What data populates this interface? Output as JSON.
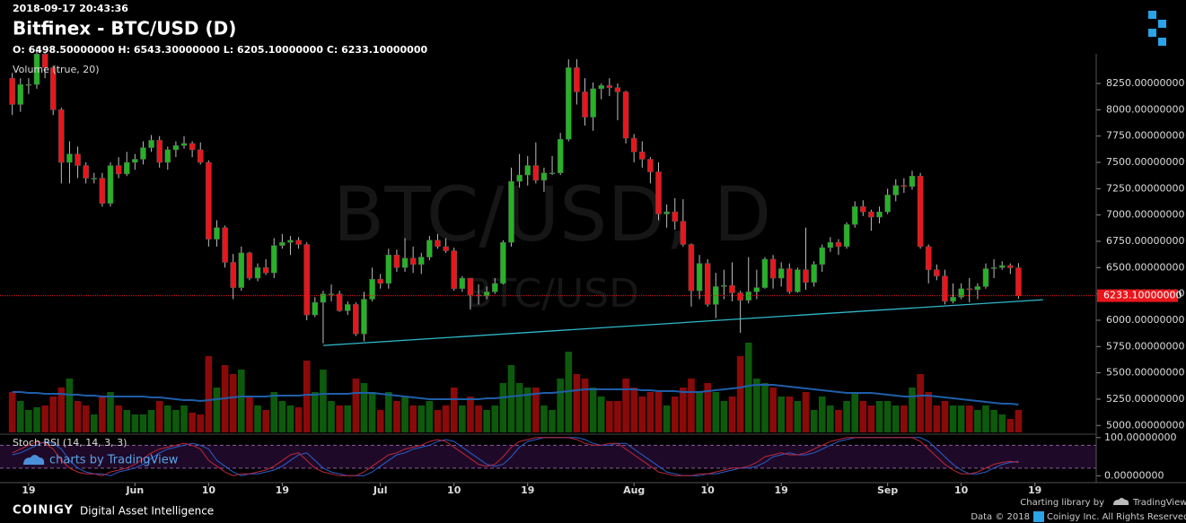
{
  "header": {
    "timestamp": "2018-09-17 20:43:36",
    "title": "Bitfinex - BTC/USD (D)",
    "ohlc": "O: 6498.50000000 H: 6543.30000000 L: 6205.10000000 C: 6233.10000000",
    "watermark": "BTC/USD, D",
    "watermark_sub": "BTC/USD"
  },
  "chart_data": {
    "type": "candlestick",
    "candles": [
      [
        8300,
        8350,
        7950,
        8050
      ],
      [
        8050,
        8300,
        7980,
        8240
      ],
      [
        8240,
        8300,
        8150,
        8240
      ],
      [
        8240,
        8600,
        8200,
        8530
      ],
      [
        8530,
        8550,
        8300,
        8400
      ],
      [
        8400,
        8420,
        7950,
        8000
      ],
      [
        8000,
        8020,
        7300,
        7500
      ],
      [
        7500,
        7700,
        7300,
        7580
      ],
      [
        7580,
        7650,
        7350,
        7470
      ],
      [
        7470,
        7500,
        7300,
        7350
      ],
      [
        7350,
        7400,
        7300,
        7350
      ],
      [
        7350,
        7400,
        7080,
        7110
      ],
      [
        7110,
        7500,
        7080,
        7470
      ],
      [
        7470,
        7550,
        7350,
        7390
      ],
      [
        7390,
        7600,
        7370,
        7500
      ],
      [
        7500,
        7580,
        7430,
        7530
      ],
      [
        7530,
        7700,
        7480,
        7640
      ],
      [
        7640,
        7760,
        7600,
        7710
      ],
      [
        7710,
        7750,
        7450,
        7500
      ],
      [
        7500,
        7650,
        7430,
        7620
      ],
      [
        7620,
        7700,
        7550,
        7660
      ],
      [
        7660,
        7750,
        7630,
        7680
      ],
      [
        7680,
        7700,
        7550,
        7620
      ],
      [
        7620,
        7690,
        7480,
        7500
      ],
      [
        7500,
        7520,
        6700,
        6770
      ],
      [
        6770,
        6950,
        6700,
        6880
      ],
      [
        6880,
        6900,
        6500,
        6550
      ],
      [
        6550,
        6630,
        6200,
        6310
      ],
      [
        6310,
        6700,
        6280,
        6640
      ],
      [
        6640,
        6650,
        6380,
        6400
      ],
      [
        6400,
        6540,
        6370,
        6500
      ],
      [
        6500,
        6580,
        6430,
        6450
      ],
      [
        6450,
        6780,
        6400,
        6710
      ],
      [
        6710,
        6820,
        6680,
        6740
      ],
      [
        6740,
        6800,
        6620,
        6760
      ],
      [
        6760,
        6790,
        6680,
        6720
      ],
      [
        6720,
        6740,
        6000,
        6050
      ],
      [
        6050,
        6220,
        6030,
        6170
      ],
      [
        6170,
        6280,
        5780,
        6250
      ],
      [
        6250,
        6340,
        6180,
        6250
      ],
      [
        6250,
        6280,
        6080,
        6090
      ],
      [
        6090,
        6180,
        6050,
        6150
      ],
      [
        6150,
        6170,
        5850,
        5870
      ],
      [
        5870,
        6270,
        5800,
        6200
      ],
      [
        6200,
        6500,
        6180,
        6390
      ],
      [
        6390,
        6440,
        6300,
        6350
      ],
      [
        6350,
        6680,
        6300,
        6620
      ],
      [
        6620,
        6670,
        6460,
        6500
      ],
      [
        6500,
        6780,
        6460,
        6590
      ],
      [
        6590,
        6700,
        6450,
        6530
      ],
      [
        6530,
        6640,
        6440,
        6600
      ],
      [
        6600,
        6800,
        6570,
        6760
      ],
      [
        6760,
        6820,
        6680,
        6700
      ],
      [
        6700,
        6780,
        6640,
        6660
      ],
      [
        6660,
        6690,
        6280,
        6300
      ],
      [
        6300,
        6420,
        6270,
        6400
      ],
      [
        6400,
        6400,
        6100,
        6240
      ],
      [
        6240,
        6340,
        6150,
        6230
      ],
      [
        6230,
        6320,
        6200,
        6270
      ],
      [
        6270,
        6400,
        6250,
        6350
      ],
      [
        6350,
        6760,
        6340,
        6740
      ],
      [
        6740,
        7450,
        6700,
        7320
      ],
      [
        7320,
        7580,
        7260,
        7380
      ],
      [
        7380,
        7560,
        7280,
        7470
      ],
      [
        7470,
        7690,
        7300,
        7330
      ],
      [
        7330,
        7450,
        7220,
        7400
      ],
      [
        7400,
        7560,
        7380,
        7400
      ],
      [
        7400,
        7780,
        7380,
        7720
      ],
      [
        7720,
        8480,
        7700,
        8400
      ],
      [
        8400,
        8480,
        8050,
        8170
      ],
      [
        8170,
        8300,
        7850,
        7930
      ],
      [
        7930,
        8260,
        7800,
        8200
      ],
      [
        8200,
        8250,
        8100,
        8230
      ],
      [
        8230,
        8300,
        8130,
        8210
      ],
      [
        8210,
        8250,
        7900,
        8170
      ],
      [
        8170,
        8180,
        7680,
        7730
      ],
      [
        7730,
        7770,
        7500,
        7600
      ],
      [
        7600,
        7700,
        7450,
        7530
      ],
      [
        7530,
        7550,
        7300,
        7410
      ],
      [
        7410,
        7500,
        6950,
        7010
      ],
      [
        7010,
        7100,
        6880,
        7030
      ],
      [
        7030,
        7160,
        6860,
        6940
      ],
      [
        6940,
        7150,
        6700,
        6720
      ],
      [
        6720,
        6730,
        6130,
        6280
      ],
      [
        6280,
        6620,
        6200,
        6540
      ],
      [
        6540,
        6580,
        6130,
        6150
      ],
      [
        6150,
        6450,
        6020,
        6320
      ],
      [
        6320,
        6480,
        6200,
        6330
      ],
      [
        6330,
        6550,
        6180,
        6260
      ],
      [
        6260,
        6280,
        5880,
        6190
      ],
      [
        6190,
        6600,
        6160,
        6270
      ],
      [
        6270,
        6480,
        6200,
        6310
      ],
      [
        6310,
        6600,
        6300,
        6580
      ],
      [
        6580,
        6620,
        6300,
        6400
      ],
      [
        6400,
        6550,
        6320,
        6490
      ],
      [
        6490,
        6540,
        6250,
        6270
      ],
      [
        6270,
        6500,
        6260,
        6480
      ],
      [
        6480,
        6880,
        6290,
        6360
      ],
      [
        6360,
        6560,
        6320,
        6530
      ],
      [
        6530,
        6720,
        6460,
        6690
      ],
      [
        6690,
        6790,
        6650,
        6740
      ],
      [
        6740,
        6770,
        6620,
        6700
      ],
      [
        6700,
        6930,
        6680,
        6910
      ],
      [
        6910,
        7130,
        6880,
        7080
      ],
      [
        7080,
        7140,
        6990,
        7030
      ],
      [
        7030,
        7050,
        6850,
        6980
      ],
      [
        6980,
        7080,
        6920,
        7030
      ],
      [
        7030,
        7250,
        7010,
        7190
      ],
      [
        7190,
        7340,
        7130,
        7280
      ],
      [
        7280,
        7350,
        7210,
        7270
      ],
      [
        7270,
        7420,
        7240,
        7370
      ],
      [
        7370,
        7400,
        6680,
        6700
      ],
      [
        6700,
        6720,
        6350,
        6480
      ],
      [
        6480,
        6530,
        6380,
        6420
      ],
      [
        6420,
        6480,
        6150,
        6180
      ],
      [
        6180,
        6350,
        6160,
        6220
      ],
      [
        6220,
        6350,
        6200,
        6300
      ],
      [
        6300,
        6400,
        6170,
        6290
      ],
      [
        6290,
        6350,
        6200,
        6320
      ],
      [
        6320,
        6540,
        6300,
        6490
      ],
      [
        6490,
        6580,
        6400,
        6500
      ],
      [
        6500,
        6560,
        6480,
        6520
      ],
      [
        6520,
        6540,
        6440,
        6498.5
      ],
      [
        6498.5,
        6543.3,
        6205.1,
        6233.1
      ]
    ],
    "colors": {
      "up": "#26b226",
      "down": "#e8161b",
      "vol_up": "#0d5a0d",
      "vol_down": "#8a0a0a"
    },
    "xlim": [
      -1.5,
      132.5
    ],
    "xticks": [
      {
        "value": 2,
        "label": "19"
      },
      {
        "value": 15,
        "label": "Jun"
      },
      {
        "value": 24,
        "label": "10"
      },
      {
        "value": 33,
        "label": "19"
      },
      {
        "value": 45,
        "label": "Jul"
      },
      {
        "value": 54,
        "label": "10"
      },
      {
        "value": 63,
        "label": "19"
      },
      {
        "value": 76,
        "label": "Aug"
      },
      {
        "value": 85,
        "label": "10"
      },
      {
        "value": 94,
        "label": "19"
      },
      {
        "value": 107,
        "label": "Sep"
      },
      {
        "value": 116,
        "label": "10"
      },
      {
        "value": 125,
        "label": "19"
      }
    ],
    "ylim": [
      4917,
      8489
    ],
    "yticks": [
      {
        "value": 5000,
        "label": "5000.00000000"
      },
      {
        "value": 5250,
        "label": "5250.00000000"
      },
      {
        "value": 5500,
        "label": "5500.00000000"
      },
      {
        "value": 5750,
        "label": "5750.00000000"
      },
      {
        "value": 6000,
        "label": "6000.00000000"
      },
      {
        "value": 6250,
        "label": "6250.00000000"
      },
      {
        "value": 6500,
        "label": "6500.00000000"
      },
      {
        "value": 6750,
        "label": "6750.00000000"
      },
      {
        "value": 7000,
        "label": "7000.00000000"
      },
      {
        "value": 7250,
        "label": "7250.00000000"
      },
      {
        "value": 7500,
        "label": "7500.00000000"
      },
      {
        "value": 7750,
        "label": "7750.00000000"
      },
      {
        "value": 8000,
        "label": "8000.00000000"
      },
      {
        "value": 8250,
        "label": "8250.00000000"
      }
    ],
    "close_label": "6233.10000000",
    "trendline": {
      "x": [
        38,
        126
      ],
      "y": [
        5760,
        6195
      ],
      "color": "#2fb8c8"
    },
    "volume": {
      "label": "Volume (true, 20)",
      "vlim": [
        0,
        110
      ],
      "ma_color": "#1f5ea8",
      "values": [
        45,
        35,
        25,
        28,
        30,
        40,
        50,
        60,
        35,
        30,
        20,
        40,
        45,
        30,
        25,
        20,
        20,
        25,
        35,
        30,
        25,
        30,
        22,
        20,
        85,
        50,
        75,
        65,
        70,
        40,
        30,
        25,
        45,
        35,
        30,
        28,
        80,
        45,
        70,
        35,
        30,
        30,
        60,
        55,
        45,
        25,
        45,
        35,
        40,
        30,
        30,
        35,
        25,
        30,
        50,
        30,
        40,
        30,
        25,
        30,
        55,
        75,
        55,
        50,
        50,
        30,
        25,
        60,
        90,
        65,
        60,
        50,
        40,
        35,
        35,
        60,
        50,
        40,
        45,
        45,
        30,
        40,
        50,
        60,
        45,
        55,
        45,
        35,
        40,
        85,
        100,
        60,
        55,
        50,
        40,
        40,
        35,
        45,
        25,
        40,
        30,
        25,
        35,
        45,
        35,
        30,
        35,
        35,
        30,
        30,
        50,
        65,
        45,
        30,
        35,
        30,
        30,
        30,
        25,
        30,
        25,
        20,
        15,
        25
      ],
      "ma": [
        45,
        45,
        44,
        44,
        43,
        43,
        43,
        42,
        42,
        41,
        41,
        40,
        40,
        40,
        40,
        40,
        40,
        39,
        39,
        38,
        37,
        36,
        36,
        35,
        36,
        37,
        38,
        39,
        40,
        40,
        40,
        40,
        41,
        41,
        41,
        41,
        42,
        42,
        43,
        43,
        43,
        43,
        44,
        44,
        44,
        43,
        42,
        41,
        40,
        39,
        38,
        37,
        37,
        37,
        37,
        37,
        37,
        37,
        38,
        38,
        39,
        40,
        41,
        42,
        43,
        44,
        44,
        45,
        46,
        47,
        48,
        48,
        48,
        48,
        48,
        48,
        48,
        47,
        47,
        46,
        46,
        46,
        45,
        45,
        45,
        46,
        47,
        48,
        49,
        50,
        52,
        53,
        53,
        53,
        52,
        51,
        50,
        49,
        48,
        47,
        46,
        45,
        44,
        44,
        44,
        44,
        43,
        42,
        41,
        40,
        40,
        41,
        41,
        40,
        39,
        38,
        37,
        36,
        35,
        34,
        33,
        32,
        32,
        31
      ]
    },
    "stoch": {
      "label": "Stoch RSI (14, 14, 3, 3)",
      "ylim": [
        -18,
        109
      ],
      "band": [
        20,
        80
      ],
      "k_color": "#c0263c",
      "d_color": "#2a5fcf",
      "yticks": [
        {
          "value": 100,
          "label": "100.00000000"
        },
        {
          "value": 0,
          "label": "0.00000000"
        }
      ],
      "k": [
        60,
        70,
        80,
        90,
        85,
        70,
        40,
        20,
        10,
        5,
        5,
        0,
        10,
        15,
        20,
        30,
        45,
        60,
        70,
        75,
        80,
        85,
        80,
        70,
        40,
        25,
        10,
        0,
        5,
        5,
        10,
        15,
        25,
        40,
        55,
        60,
        40,
        20,
        10,
        5,
        0,
        0,
        0,
        10,
        25,
        40,
        55,
        60,
        70,
        75,
        80,
        90,
        95,
        90,
        75,
        60,
        45,
        30,
        25,
        30,
        50,
        75,
        90,
        95,
        100,
        100,
        100,
        100,
        100,
        95,
        85,
        80,
        80,
        85,
        85,
        70,
        55,
        40,
        25,
        10,
        5,
        0,
        0,
        0,
        5,
        5,
        10,
        15,
        20,
        20,
        25,
        35,
        50,
        55,
        60,
        55,
        55,
        60,
        70,
        80,
        90,
        95,
        100,
        100,
        100,
        100,
        100,
        100,
        100,
        100,
        100,
        90,
        70,
        50,
        30,
        15,
        5,
        5,
        10,
        20,
        30,
        35,
        38,
        35
      ],
      "d": [
        55,
        60,
        70,
        80,
        90,
        85,
        70,
        40,
        20,
        10,
        5,
        5,
        0,
        10,
        15,
        20,
        30,
        45,
        60,
        70,
        75,
        80,
        85,
        80,
        70,
        40,
        25,
        10,
        0,
        5,
        5,
        10,
        15,
        25,
        40,
        55,
        60,
        40,
        20,
        10,
        5,
        0,
        0,
        0,
        10,
        25,
        40,
        55,
        60,
        70,
        75,
        80,
        90,
        95,
        90,
        75,
        60,
        45,
        30,
        25,
        30,
        50,
        75,
        90,
        95,
        100,
        100,
        100,
        100,
        100,
        95,
        85,
        80,
        80,
        85,
        85,
        70,
        55,
        40,
        25,
        10,
        5,
        0,
        0,
        0,
        5,
        5,
        10,
        15,
        20,
        20,
        25,
        35,
        50,
        55,
        60,
        55,
        55,
        60,
        70,
        80,
        90,
        95,
        100,
        100,
        100,
        100,
        100,
        100,
        100,
        100,
        100,
        90,
        70,
        50,
        30,
        15,
        5,
        5,
        10,
        20,
        30,
        35,
        38
      ]
    }
  },
  "footer": {
    "branding": "charts by TradingView",
    "brand": "COINIGY",
    "tagline": "Digital Asset Intelligence",
    "library": "Charting library by",
    "library_name": "TradingView",
    "copyright": "Data © 2018",
    "rights": "Coinigy Inc. All Rights Reserved."
  }
}
